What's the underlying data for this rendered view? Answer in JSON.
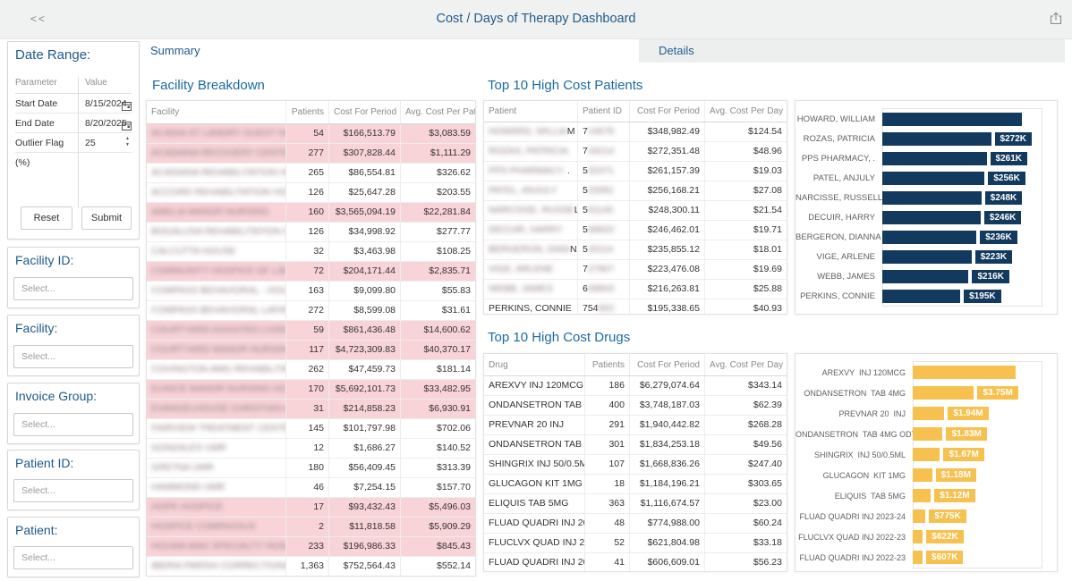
{
  "header": {
    "title": "Cost / Days of Therapy Dashboard",
    "collapse_glyph": "<<"
  },
  "tabs": [
    {
      "label": "Summary",
      "active": true
    },
    {
      "label": "Details",
      "active": false
    }
  ],
  "sidebar": {
    "date_range": {
      "title": "Date Range:",
      "columns": [
        "Parameter",
        "Value"
      ],
      "rows": [
        {
          "param": "Start Date",
          "value": "8/15/2024",
          "control": "calendar"
        },
        {
          "param": "End Date",
          "value": "8/20/2025",
          "control": "calendar"
        },
        {
          "param": "Outlier Flag (%)",
          "value": "25",
          "control": "spinner"
        }
      ],
      "buttons": [
        "Reset",
        "Submit"
      ]
    },
    "filters": [
      {
        "title": "Facility ID:",
        "placeholder": "Select..."
      },
      {
        "title": "Facility:",
        "placeholder": "Select..."
      },
      {
        "title": "Invoice Group:",
        "placeholder": "Select..."
      },
      {
        "title": "Patient ID:",
        "placeholder": "Select..."
      },
      {
        "title": "Patient:",
        "placeholder": "Select..."
      }
    ]
  },
  "facility_breakdown": {
    "title": "Facility Breakdown",
    "columns": [
      "Facility",
      "Patients",
      "Cost For Period",
      "Avg. Cost Per Pat."
    ],
    "rows": [
      {
        "hidden": "ACADIA ST LANDRY GUEST HO",
        "tail": "ME",
        "pink": true,
        "patients": "54",
        "cost": "$166,513.79",
        "avg": "$3,083.59"
      },
      {
        "hidden": "ACADIANA RECOVERY CENTER",
        "tail": "",
        "pink": true,
        "patients": "277",
        "cost": "$307,828.44",
        "avg": "$1,111.29"
      },
      {
        "hidden": "ACADIANA REHABILITATION HO",
        "tail": "SP",
        "pink": false,
        "patients": "265",
        "cost": "$86,554.81",
        "avg": "$326.62"
      },
      {
        "hidden": "ACCORD REHABILITATION HOSP",
        "tail": "ITAL",
        "pink": false,
        "patients": "126",
        "cost": "$25,647.28",
        "avg": "$203.55"
      },
      {
        "hidden": "AMELIA MANOR NURSING",
        "tail": "",
        "pink": true,
        "patients": "160",
        "cost": "$3,565,094.19",
        "avg": "$22,281.84"
      },
      {
        "hidden": "BOGALUSA REHABILITATION HO",
        "tail": "SP",
        "pink": false,
        "patients": "126",
        "cost": "$34,998.92",
        "avg": "$277.77"
      },
      {
        "hidden": "CALCUTTA HOUSE",
        "tail": "",
        "pink": false,
        "patients": "32",
        "cost": "$3,463.98",
        "avg": "$108.25"
      },
      {
        "hidden": "COMMUNITY HOSPICE OF LAFA",
        "tail": "YE...",
        "pink": true,
        "patients": "72",
        "cost": "$204,171.44",
        "avg": "$2,835.71"
      },
      {
        "hidden": "COMPASS BEHAVIORAL - HOU",
        "tail": "MA",
        "pink": false,
        "patients": "163",
        "cost": "$9,099.80",
        "avg": "$55.83"
      },
      {
        "hidden": "COMPASS BEHAVIORAL LAFAYE",
        "tail": "TTE",
        "pink": false,
        "patients": "272",
        "cost": "$8,599.08",
        "avg": "$31.61"
      },
      {
        "hidden": "COURTYARD ASSISTED LIVING",
        "tail": "",
        "pink": true,
        "patients": "59",
        "cost": "$861,436.48",
        "avg": "$14,600.62"
      },
      {
        "hidden": "COURTYARD MANOR NURSING",
        "tail": " H...",
        "pink": true,
        "patients": "117",
        "cost": "$4,723,309.83",
        "avg": "$40,370.17"
      },
      {
        "hidden": "COVINGTON AMG REHABILITATI",
        "tail": "ON",
        "pink": false,
        "patients": "262",
        "cost": "$47,459.73",
        "avg": "$181.14"
      },
      {
        "hidden": "EUNICE MANOR NURSING HO",
        "tail": "ME",
        "pink": true,
        "patients": "170",
        "cost": "$5,692,101.73",
        "avg": "$33,482.95"
      },
      {
        "hidden": "EVANGELHOUSE CHRISTIAN AC",
        "tail": "AD...",
        "pink": true,
        "patients": "31",
        "cost": "$214,858.23",
        "avg": "$6,930.91"
      },
      {
        "hidden": "FAIRVIEW TREATMENT CENTER",
        "tail": "",
        "pink": false,
        "patients": "145",
        "cost": "$101,797.98",
        "avg": "$702.06"
      },
      {
        "hidden": "GONZALES UMR",
        "tail": "",
        "pink": false,
        "patients": "12",
        "cost": "$1,686.27",
        "avg": "$140.52"
      },
      {
        "hidden": "GRETNA UMR",
        "tail": "",
        "pink": false,
        "patients": "180",
        "cost": "$56,409.45",
        "avg": "$313.39"
      },
      {
        "hidden": "HAMMOND UMR",
        "tail": "",
        "pink": false,
        "patients": "46",
        "cost": "$7,254.15",
        "avg": "$157.70"
      },
      {
        "hidden": "HOPE HOSPICE",
        "tail": "",
        "pink": true,
        "patients": "17",
        "cost": "$93,432.43",
        "avg": "$5,496.03"
      },
      {
        "hidden": "HOSPICE COMPASSUS",
        "tail": "",
        "pink": true,
        "patients": "2",
        "cost": "$11,818.58",
        "avg": "$5,909.29"
      },
      {
        "hidden": "HOUMA AMG SPECIALTY HOSPI",
        "tail": "TAL",
        "pink": true,
        "patients": "233",
        "cost": "$196,986.33",
        "avg": "$845.43"
      },
      {
        "hidden": "IBERIA PARISH CORRECTIONAL",
        "tail": "",
        "pink": false,
        "patients": "1,363",
        "cost": "$752,564.43",
        "avg": "$552.14"
      }
    ]
  },
  "top_patients": {
    "title": "Top 10 High Cost Patients",
    "columns": [
      "Patient",
      "Patient ID",
      "Cost For Period",
      "Avg. Cost Per Day"
    ],
    "rows": [
      {
        "name_hidden": "HOWARD, WILLIA",
        "name_tail": "M",
        "id_clear": "7",
        "id_hidden": "14678",
        "cost": "$348,982.49",
        "avg": "$124.54"
      },
      {
        "name_hidden": "ROZAS, PATRICIA",
        "name_tail": "",
        "id_clear": "7",
        "id_hidden": "16214",
        "cost": "$272,351.48",
        "avg": "$48.96"
      },
      {
        "name_hidden": "PPS PHARMACY,",
        "name_tail": " .",
        "id_clear": "5",
        "id_hidden": "31071",
        "cost": "$261,157.39",
        "avg": "$19.03"
      },
      {
        "name_hidden": "PATEL, ANJULY",
        "name_tail": "",
        "id_clear": "5",
        "id_hidden": "23081",
        "cost": "$256,168.21",
        "avg": "$27.08"
      },
      {
        "name_hidden": "NARCISSE, RUSSE",
        "name_tail": "LL",
        "id_clear": "5",
        "id_hidden": "61140",
        "cost": "$248,300.11",
        "avg": "$21.54"
      },
      {
        "name_hidden": "DECUIR, HARRY",
        "name_tail": "",
        "id_clear": "5",
        "id_hidden": "69820",
        "cost": "$246,462.01",
        "avg": "$19.71"
      },
      {
        "name_hidden": "BERGERON, DIAN",
        "name_tail": "NA",
        "id_clear": "5",
        "id_hidden": "20114",
        "cost": "$235,855.12",
        "avg": "$18.01"
      },
      {
        "name_hidden": "VIGE, ARLENE",
        "name_tail": "",
        "id_clear": "7",
        "id_hidden": "27907",
        "cost": "$223,476.08",
        "avg": "$19.69"
      },
      {
        "name_hidden": "WEBB, JAMES",
        "name_tail": "",
        "id_clear": "6",
        "id_hidden": "09803",
        "cost": "$216,263.81",
        "avg": "$25.88"
      },
      {
        "name_hidden": "",
        "name_tail": "PERKINS, CONNIE",
        "id_clear": "754",
        "id_hidden": "602",
        "cost": "$195,338.65",
        "avg": "$40.93"
      }
    ]
  },
  "top_drugs": {
    "title": "Top 10 High Cost Drugs",
    "columns": [
      "Drug",
      "Patients",
      "Cost For Period",
      "Avg. Cost Per Day"
    ],
    "rows": [
      {
        "name": "AREXVY INJ 120MCG",
        "patients": "186",
        "cost": "$6,279,074.64",
        "avg": "$343.14"
      },
      {
        "name": "ONDANSETRON TAB ...",
        "patients": "400",
        "cost": "$3,748,187.03",
        "avg": "$62.39"
      },
      {
        "name": "PREVNAR 20 INJ",
        "patients": "291",
        "cost": "$1,940,442.82",
        "avg": "$268.28"
      },
      {
        "name": "ONDANSETRON TAB ...",
        "patients": "301",
        "cost": "$1,834,253.18",
        "avg": "$49.56"
      },
      {
        "name": "SHINGRIX INJ 50/0.5ML",
        "patients": "107",
        "cost": "$1,668,836.26",
        "avg": "$247.40"
      },
      {
        "name": "GLUCAGON KIT 1MG",
        "patients": "18",
        "cost": "$1,184,196.21",
        "avg": "$303.65"
      },
      {
        "name": "ELIQUIS TAB 5MG",
        "patients": "363",
        "cost": "$1,116,674.57",
        "avg": "$23.00"
      },
      {
        "name": "FLUAD QUADRI INJ 20...",
        "patients": "48",
        "cost": "$774,988.00",
        "avg": "$60.24"
      },
      {
        "name": "FLUCLVX QUAD INJ 2...",
        "patients": "52",
        "cost": "$621,804.98",
        "avg": "$33.18"
      },
      {
        "name": "FLUAD QUADRI INJ 20...",
        "patients": "41",
        "cost": "$606,609.01",
        "avg": "$56.23"
      }
    ]
  },
  "chart_data": [
    {
      "type": "bar",
      "orientation": "horizontal",
      "title": "Top 10 High Cost Patients",
      "xlabel": "Cost For Period",
      "bar_color": "#12395e",
      "categories": [
        "HOWARD, WILLIAM",
        "ROZAS, PATRICIA",
        "PPS PHARMACY, .",
        "PATEL, ANJULY",
        "NARCISSE, RUSSELL",
        "DECUIR, HARRY",
        "BERGERON, DIANNA",
        "VIGE, ARLENE",
        "WEBB, JAMES",
        "PERKINS, CONNIE"
      ],
      "values": [
        348982.49,
        272351.48,
        261157.39,
        256168.21,
        248300.11,
        246462.01,
        235855.12,
        223476.08,
        216263.81,
        195338.65
      ],
      "data_labels": [
        null,
        "$272K",
        "$261K",
        "$256K",
        "$248K",
        "$246K",
        "$236K",
        "$223K",
        "$216K",
        "$195K"
      ],
      "grid": false,
      "legend": false
    },
    {
      "type": "bar",
      "orientation": "horizontal",
      "title": "Top 10 High Cost Drugs",
      "xlabel": "Cost For Period",
      "bar_color": "#f6c14e",
      "categories": [
        "AREXVY  INJ 120MCG",
        "ONDANSETRON  TAB 4MG",
        "PREVNAR 20  INJ",
        "ONDANSETRON  TAB 4MG ODT",
        "SHINGRIX  INJ 50/0.5ML",
        "GLUCAGON  KIT 1MG",
        "ELIQUIS  TAB 5MG",
        "FLUAD QUADRI INJ 2023-24",
        "FLUCLVX QUAD INJ 2022-23",
        "FLUAD QUADRI INJ 2022-23"
      ],
      "values": [
        6279074.64,
        3748187.03,
        1940442.82,
        1834253.18,
        1668836.26,
        1184196.21,
        1116674.57,
        774988.0,
        621804.98,
        606609.01
      ],
      "data_labels": [
        null,
        "$3.75M",
        "$1.94M",
        "$1.83M",
        "$1.67M",
        "$1.18M",
        "$1.12M",
        "$775K",
        "$622K",
        "$607K"
      ],
      "grid": false,
      "legend": false
    }
  ]
}
